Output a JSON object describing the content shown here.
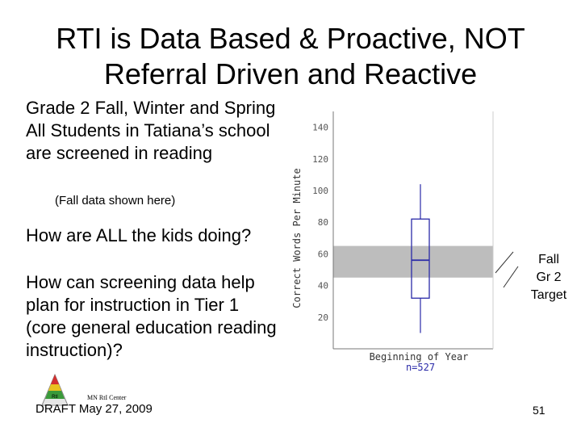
{
  "slide": {
    "title_line1": "RTI is Data Based & Proactive, NOT",
    "title_line2": "Referral Driven and Reactive",
    "bullet1": "Grade 2 Fall, Winter and Spring All Students in Tatiana’s school are screened in reading",
    "sub_note": "(Fall data shown here)",
    "bullet2": "How are ALL the kids doing?",
    "bullet3": "How can screening data help plan for instruction in Tier 1 (core general education reading instruction)?",
    "target_line1": "Fall",
    "target_line2": "Gr 2",
    "target_line3": "Target",
    "footer_draft": "DRAFT May 27, 2009",
    "footer_center": "MN RtI Center",
    "logo_text": "RtI",
    "page_number": "51"
  },
  "chart_data": {
    "type": "box",
    "ylabel": "Correct Words Per Minute",
    "ylim": [
      0,
      150
    ],
    "yticks": [
      20,
      40,
      60,
      80,
      100,
      120,
      140
    ],
    "category": "Beginning of Year",
    "n_label": "n=527",
    "box": {
      "whisker_low": 10,
      "q1": 32,
      "median": 56,
      "q3": 82,
      "whisker_high": 104
    },
    "target_band": [
      45,
      65
    ],
    "colors": {
      "box": "#2a2aa8",
      "band": "#bdbdbd",
      "axis": "#777777",
      "n_label": "#2a2aa8"
    }
  }
}
